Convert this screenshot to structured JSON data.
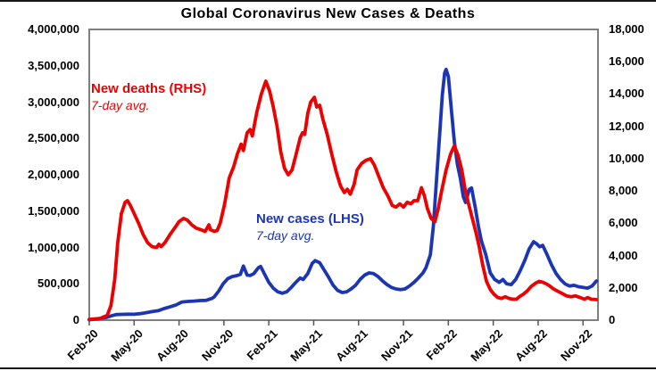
{
  "chart_data": {
    "type": "line",
    "title": "Global Coronavirus New Cases & Deaths",
    "grid": false,
    "legend_position": "inline-annotations",
    "x_axis": {
      "tick_labels": [
        "Feb-20",
        "May-20",
        "Aug-20",
        "Nov-20",
        "Feb-21",
        "May-21",
        "Aug-21",
        "Nov-21",
        "Feb-22",
        "May-22",
        "Aug-22",
        "Nov-22"
      ],
      "tick_interval_months": 3,
      "total_months": 34
    },
    "left_axis": {
      "min": 0,
      "max": 4000000,
      "tick_step": 500000,
      "tick_labels": [
        "0",
        "500,000",
        "1,000,000",
        "1,500,000",
        "2,000,000",
        "2,500,000",
        "3,000,000",
        "3,500,000",
        "4,000,000"
      ]
    },
    "right_axis": {
      "min": 0,
      "max": 18000,
      "tick_step": 2000,
      "tick_labels": [
        "0",
        "2,000",
        "4,000",
        "6,000",
        "8,000",
        "10,000",
        "12,000",
        "14,000",
        "16,000",
        "18,000"
      ]
    },
    "series": [
      {
        "name": "new-cases",
        "label": "New cases (LHS)",
        "sublabel": "7-day avg.",
        "axis": "left",
        "color": "#1B35B5",
        "points": [
          [
            0,
            5000
          ],
          [
            0.6,
            20000
          ],
          [
            1.2,
            40000
          ],
          [
            1.5,
            60000
          ],
          [
            1.8,
            77000
          ],
          [
            2.2,
            80000
          ],
          [
            2.6,
            82000
          ],
          [
            3.0,
            81000
          ],
          [
            3.4,
            90000
          ],
          [
            3.8,
            103000
          ],
          [
            4.2,
            118000
          ],
          [
            4.6,
            130000
          ],
          [
            5.0,
            160000
          ],
          [
            5.4,
            183000
          ],
          [
            5.8,
            210000
          ],
          [
            6.2,
            250000
          ],
          [
            6.6,
            258000
          ],
          [
            7.0,
            262000
          ],
          [
            7.4,
            270000
          ],
          [
            7.8,
            272000
          ],
          [
            8.2,
            300000
          ],
          [
            8.35,
            320000
          ],
          [
            8.65,
            400000
          ],
          [
            8.95,
            500000
          ],
          [
            9.25,
            570000
          ],
          [
            9.55,
            600000
          ],
          [
            9.8,
            610000
          ],
          [
            10.1,
            630000
          ],
          [
            10.3,
            745000
          ],
          [
            10.55,
            620000
          ],
          [
            10.75,
            615000
          ],
          [
            11.0,
            640000
          ],
          [
            11.3,
            720000
          ],
          [
            11.45,
            740000
          ],
          [
            11.7,
            640000
          ],
          [
            12.0,
            520000
          ],
          [
            12.3,
            440000
          ],
          [
            12.6,
            390000
          ],
          [
            12.9,
            370000
          ],
          [
            13.2,
            390000
          ],
          [
            13.5,
            450000
          ],
          [
            13.8,
            520000
          ],
          [
            14.1,
            580000
          ],
          [
            14.3,
            560000
          ],
          [
            14.6,
            640000
          ],
          [
            14.9,
            780000
          ],
          [
            15.1,
            820000
          ],
          [
            15.4,
            790000
          ],
          [
            15.7,
            690000
          ],
          [
            16.0,
            590000
          ],
          [
            16.3,
            480000
          ],
          [
            16.6,
            410000
          ],
          [
            16.9,
            380000
          ],
          [
            17.2,
            390000
          ],
          [
            17.5,
            430000
          ],
          [
            17.8,
            480000
          ],
          [
            18.1,
            560000
          ],
          [
            18.4,
            620000
          ],
          [
            18.7,
            650000
          ],
          [
            19.0,
            640000
          ],
          [
            19.3,
            600000
          ],
          [
            19.6,
            540000
          ],
          [
            19.9,
            490000
          ],
          [
            20.2,
            450000
          ],
          [
            20.5,
            430000
          ],
          [
            20.8,
            420000
          ],
          [
            21.1,
            430000
          ],
          [
            21.4,
            470000
          ],
          [
            21.7,
            520000
          ],
          [
            22.0,
            580000
          ],
          [
            22.3,
            650000
          ],
          [
            22.5,
            720000
          ],
          [
            22.8,
            900000
          ],
          [
            23.0,
            1300000
          ],
          [
            23.2,
            1900000
          ],
          [
            23.4,
            2500000
          ],
          [
            23.6,
            3100000
          ],
          [
            23.75,
            3400000
          ],
          [
            23.85,
            3450000
          ],
          [
            24.0,
            3350000
          ],
          [
            24.2,
            2900000
          ],
          [
            24.4,
            2450000
          ],
          [
            24.6,
            2150000
          ],
          [
            24.8,
            1950000
          ],
          [
            25.0,
            1700000
          ],
          [
            25.15,
            1620000
          ],
          [
            25.4,
            1800000
          ],
          [
            25.55,
            1820000
          ],
          [
            25.8,
            1550000
          ],
          [
            26.0,
            1300000
          ],
          [
            26.2,
            1100000
          ],
          [
            26.5,
            900000
          ],
          [
            26.8,
            650000
          ],
          [
            27.1,
            560000
          ],
          [
            27.4,
            520000
          ],
          [
            27.65,
            560000
          ],
          [
            27.9,
            500000
          ],
          [
            28.2,
            490000
          ],
          [
            28.5,
            560000
          ],
          [
            28.8,
            680000
          ],
          [
            29.1,
            820000
          ],
          [
            29.4,
            980000
          ],
          [
            29.7,
            1080000
          ],
          [
            29.9,
            1050000
          ],
          [
            30.1,
            1010000
          ],
          [
            30.3,
            1030000
          ],
          [
            30.6,
            900000
          ],
          [
            30.9,
            760000
          ],
          [
            31.2,
            640000
          ],
          [
            31.5,
            560000
          ],
          [
            31.8,
            500000
          ],
          [
            32.1,
            470000
          ],
          [
            32.4,
            480000
          ],
          [
            32.7,
            460000
          ],
          [
            33.0,
            450000
          ],
          [
            33.3,
            440000
          ],
          [
            33.6,
            470000
          ],
          [
            33.9,
            540000
          ]
        ]
      },
      {
        "name": "new-deaths",
        "label": "New deaths (RHS)",
        "sublabel": "7-day avg.",
        "axis": "right",
        "color": "#EE0000",
        "points": [
          [
            0,
            50
          ],
          [
            0.7,
            100
          ],
          [
            1.2,
            300
          ],
          [
            1.45,
            900
          ],
          [
            1.7,
            2500
          ],
          [
            1.9,
            4800
          ],
          [
            2.15,
            6600
          ],
          [
            2.4,
            7300
          ],
          [
            2.55,
            7400
          ],
          [
            2.75,
            7100
          ],
          [
            3.0,
            6600
          ],
          [
            3.3,
            6000
          ],
          [
            3.6,
            5300
          ],
          [
            3.9,
            4800
          ],
          [
            4.2,
            4550
          ],
          [
            4.5,
            4500
          ],
          [
            4.65,
            4700
          ],
          [
            4.8,
            4550
          ],
          [
            5.05,
            4800
          ],
          [
            5.4,
            5300
          ],
          [
            5.7,
            5700
          ],
          [
            6.0,
            6100
          ],
          [
            6.3,
            6300
          ],
          [
            6.55,
            6200
          ],
          [
            6.85,
            5900
          ],
          [
            7.15,
            5700
          ],
          [
            7.45,
            5600
          ],
          [
            7.75,
            5500
          ],
          [
            8.0,
            5900
          ],
          [
            8.1,
            5600
          ],
          [
            8.35,
            5500
          ],
          [
            8.55,
            5550
          ],
          [
            8.75,
            6000
          ],
          [
            9.05,
            7200
          ],
          [
            9.35,
            8800
          ],
          [
            9.65,
            9500
          ],
          [
            9.9,
            10300
          ],
          [
            10.15,
            10900
          ],
          [
            10.3,
            10500
          ],
          [
            10.55,
            11600
          ],
          [
            10.75,
            11800
          ],
          [
            10.9,
            11400
          ],
          [
            11.2,
            12900
          ],
          [
            11.5,
            14000
          ],
          [
            11.8,
            14800
          ],
          [
            12.05,
            14200
          ],
          [
            12.3,
            13200
          ],
          [
            12.55,
            12000
          ],
          [
            12.8,
            10400
          ],
          [
            13.05,
            9400
          ],
          [
            13.3,
            9000
          ],
          [
            13.55,
            9300
          ],
          [
            13.8,
            10200
          ],
          [
            14.1,
            11300
          ],
          [
            14.25,
            11600
          ],
          [
            14.4,
            11500
          ],
          [
            14.6,
            12800
          ],
          [
            14.8,
            13500
          ],
          [
            15.05,
            13800
          ],
          [
            15.2,
            13200
          ],
          [
            15.4,
            13300
          ],
          [
            15.6,
            12500
          ],
          [
            15.9,
            11500
          ],
          [
            16.2,
            10300
          ],
          [
            16.5,
            9200
          ],
          [
            16.8,
            8300
          ],
          [
            17.05,
            7900
          ],
          [
            17.25,
            8100
          ],
          [
            17.45,
            7800
          ],
          [
            17.7,
            8400
          ],
          [
            17.9,
            9300
          ],
          [
            18.2,
            9700
          ],
          [
            18.5,
            9900
          ],
          [
            18.8,
            10000
          ],
          [
            19.05,
            9600
          ],
          [
            19.35,
            8900
          ],
          [
            19.65,
            8200
          ],
          [
            19.95,
            7700
          ],
          [
            20.25,
            7100
          ],
          [
            20.5,
            7000
          ],
          [
            20.75,
            7200
          ],
          [
            21.0,
            7000
          ],
          [
            21.25,
            7300
          ],
          [
            21.5,
            7200
          ],
          [
            21.7,
            7400
          ],
          [
            21.95,
            7400
          ],
          [
            22.2,
            8200
          ],
          [
            22.4,
            7700
          ],
          [
            22.6,
            6900
          ],
          [
            22.85,
            6300
          ],
          [
            23.1,
            6100
          ],
          [
            23.3,
            6800
          ],
          [
            23.55,
            8000
          ],
          [
            23.85,
            9300
          ],
          [
            24.15,
            10300
          ],
          [
            24.4,
            10800
          ],
          [
            24.65,
            10200
          ],
          [
            24.9,
            9300
          ],
          [
            25.1,
            8200
          ],
          [
            25.35,
            7200
          ],
          [
            25.6,
            6300
          ],
          [
            25.85,
            5400
          ],
          [
            26.05,
            4600
          ],
          [
            26.3,
            3400
          ],
          [
            26.55,
            2400
          ],
          [
            26.8,
            1900
          ],
          [
            27.05,
            1600
          ],
          [
            27.3,
            1400
          ],
          [
            27.55,
            1350
          ],
          [
            27.8,
            1450
          ],
          [
            28.05,
            1350
          ],
          [
            28.3,
            1300
          ],
          [
            28.55,
            1300
          ],
          [
            28.75,
            1450
          ],
          [
            29.0,
            1600
          ],
          [
            29.25,
            1800
          ],
          [
            29.55,
            2100
          ],
          [
            29.85,
            2300
          ],
          [
            30.05,
            2400
          ],
          [
            30.3,
            2350
          ],
          [
            30.55,
            2250
          ],
          [
            30.8,
            2100
          ],
          [
            31.0,
            1950
          ],
          [
            31.3,
            1800
          ],
          [
            31.6,
            1650
          ],
          [
            31.9,
            1500
          ],
          [
            32.2,
            1450
          ],
          [
            32.5,
            1500
          ],
          [
            32.8,
            1400
          ],
          [
            33.1,
            1300
          ],
          [
            33.3,
            1400
          ],
          [
            33.55,
            1300
          ],
          [
            33.9,
            1270
          ]
        ]
      }
    ]
  }
}
